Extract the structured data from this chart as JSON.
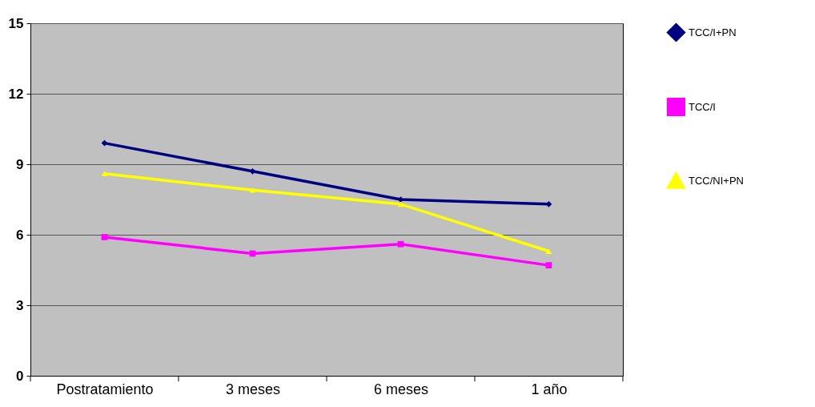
{
  "chart_data": {
    "type": "line",
    "categories": [
      "Postratamiento",
      "3 meses",
      "6 meses",
      "1 año"
    ],
    "series": [
      {
        "name": "TCC/I+PN",
        "color": "#000080",
        "marker": "diamond",
        "values": [
          9.9,
          8.7,
          7.5,
          7.3
        ]
      },
      {
        "name": "TCC/I",
        "color": "#ff00ff",
        "marker": "square",
        "values": [
          5.9,
          5.2,
          5.6,
          4.7
        ]
      },
      {
        "name": "TCC/NI+PN",
        "color": "#ffff00",
        "marker": "triangle",
        "values": [
          8.6,
          7.9,
          7.3,
          5.3
        ]
      }
    ],
    "ylim": [
      0,
      15
    ],
    "yticks": [
      0,
      3,
      6,
      9,
      12,
      15
    ],
    "grid": "y",
    "legend": "right",
    "line_style": "solid"
  }
}
